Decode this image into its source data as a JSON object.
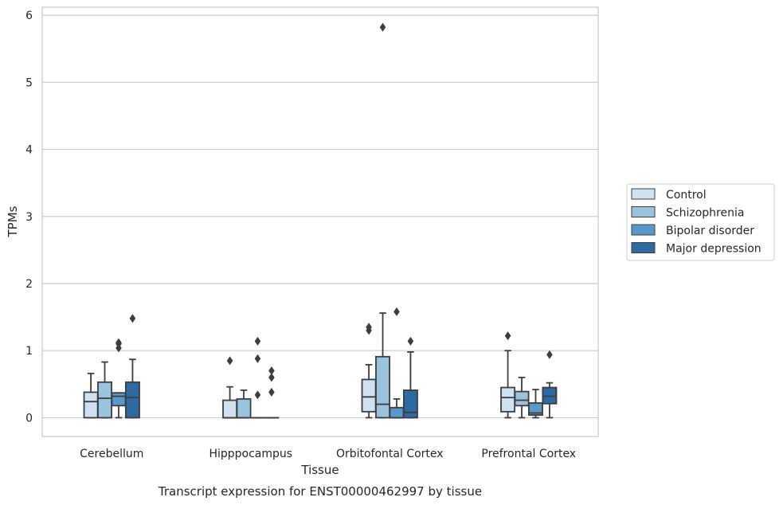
{
  "chart_data": {
    "type": "box",
    "caption": "Transcript expression for ENST00000462997 by tissue",
    "xlabel": "Tissue",
    "ylabel": "TPMs",
    "ylim": [
      -0.28,
      6.12
    ],
    "yticks": [
      0,
      1,
      2,
      3,
      4,
      5,
      6
    ],
    "grid": "horizontal",
    "legend_position": "right",
    "categories": [
      "Cerebellum",
      "Hipppocampus",
      "Orbitofontal Cortex",
      "Prefrontal Cortex"
    ],
    "series": [
      {
        "name": "Control",
        "color": "#d0e1f2",
        "boxes": [
          {
            "whislo": 0,
            "q1": 0,
            "med": 0.24,
            "q3": 0.38,
            "whishi": 0.66,
            "fliers": []
          },
          {
            "whislo": 0,
            "q1": 0,
            "med": 0,
            "q3": 0.26,
            "whishi": 0.46,
            "fliers": [
              0.85
            ]
          },
          {
            "whislo": 0,
            "q1": 0.09,
            "med": 0.31,
            "q3": 0.57,
            "whishi": 0.79,
            "fliers": [
              1.3,
              1.35
            ]
          },
          {
            "whislo": 0,
            "q1": 0.09,
            "med": 0.3,
            "q3": 0.45,
            "whishi": 1.0,
            "fliers": [
              1.22
            ]
          }
        ]
      },
      {
        "name": "Schizophrenia",
        "color": "#9ac3de",
        "boxes": [
          {
            "whislo": 0,
            "q1": 0,
            "med": 0.29,
            "q3": 0.53,
            "whishi": 0.83,
            "fliers": []
          },
          {
            "whislo": 0,
            "q1": 0,
            "med": 0,
            "q3": 0.28,
            "whishi": 0.41,
            "fliers": []
          },
          {
            "whislo": 0,
            "q1": 0,
            "med": 0.2,
            "q3": 0.91,
            "whishi": 1.56,
            "fliers": [
              5.82
            ]
          },
          {
            "whislo": 0,
            "q1": 0.18,
            "med": 0.26,
            "q3": 0.39,
            "whishi": 0.6,
            "fliers": []
          }
        ]
      },
      {
        "name": "Bipolar disorder",
        "color": "#5899c9",
        "boxes": [
          {
            "whislo": 0,
            "q1": 0.18,
            "med": 0.32,
            "q3": 0.37,
            "whishi": 0.37,
            "fliers": [
              1.04,
              1.1,
              1.12
            ]
          },
          {
            "whislo": 0,
            "q1": 0,
            "med": 0,
            "q3": 0,
            "whishi": 0,
            "fliers": [
              0.34,
              0.88,
              1.14
            ]
          },
          {
            "whislo": 0,
            "q1": 0,
            "med": 0,
            "q3": 0.15,
            "whishi": 0.28,
            "fliers": [
              1.58
            ]
          },
          {
            "whislo": 0,
            "q1": 0.04,
            "med": 0.07,
            "q3": 0.22,
            "whishi": 0.42,
            "fliers": []
          }
        ]
      },
      {
        "name": "Major depression",
        "color": "#2d6aa4",
        "boxes": [
          {
            "whislo": 0,
            "q1": 0,
            "med": 0.3,
            "q3": 0.53,
            "whishi": 0.87,
            "fliers": [
              1.48
            ]
          },
          {
            "whislo": 0,
            "q1": 0,
            "med": 0,
            "q3": 0,
            "whishi": 0,
            "fliers": [
              0.38,
              0.6,
              0.7
            ]
          },
          {
            "whislo": 0,
            "q1": 0,
            "med": 0.08,
            "q3": 0.41,
            "whishi": 0.98,
            "fliers": [
              1.14
            ]
          },
          {
            "whislo": 0,
            "q1": 0.21,
            "med": 0.32,
            "q3": 0.45,
            "whishi": 0.52,
            "fliers": [
              0.94
            ]
          }
        ]
      }
    ]
  }
}
